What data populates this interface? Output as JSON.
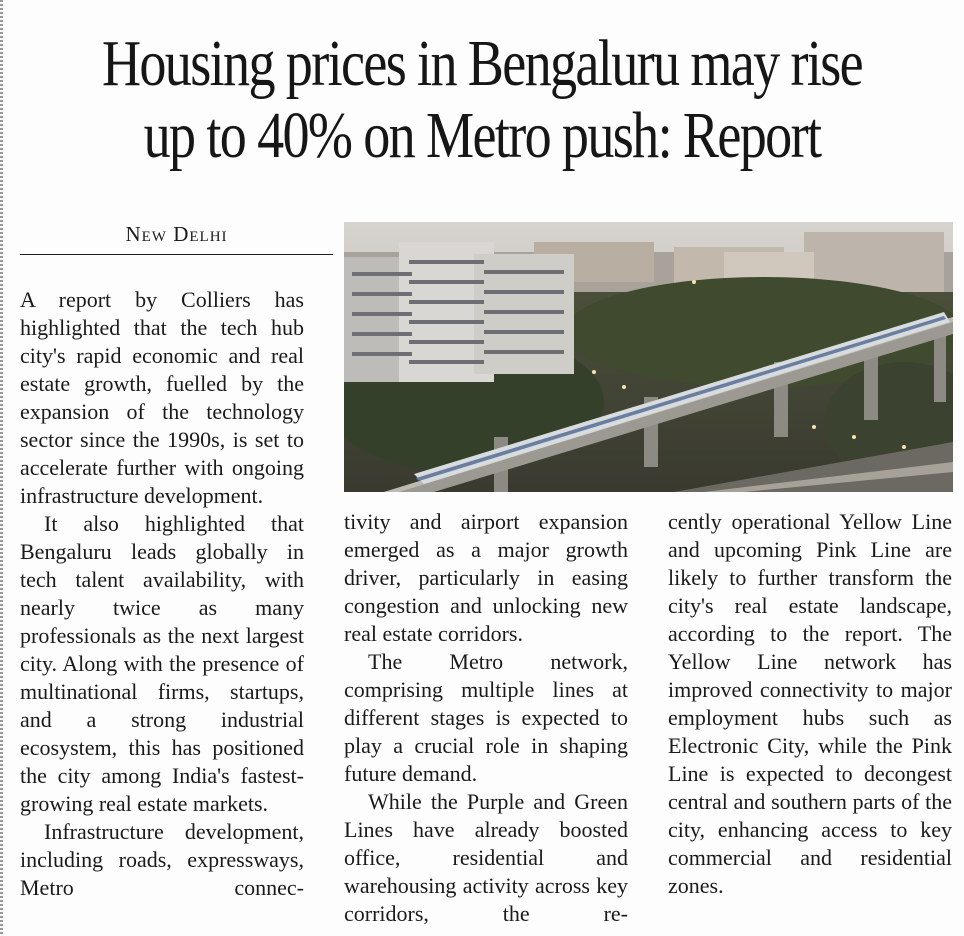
{
  "article": {
    "headline_line1": "Housing prices in Bengaluru may rise",
    "headline_line2": "up to 40% on Metro push: Report",
    "dateline": "New Delhi",
    "col1": {
      "p1": "A report by Colliers has highlighted that the tech hub city's rapid economic and real estate growth, fuelled by the expansion of the technology sector since the 1990s, is set to accelerate further with ongoing infrastructure development.",
      "p2": "It also highlighted that Bengaluru leads globally in tech talent availability, with nearly twice as many professionals as the next largest city. Along with the presence of multinational firms, startups, and a strong industrial ecosystem, this has positioned the city among India's fastest-growing real estate markets.",
      "p3": "Infrastructure development, including roads, expressways, Metro connec-"
    },
    "col2": {
      "p1": "tivity and airport expansion emerged as a major growth driver, particularly in easing congestion and unlocking new real estate corridors.",
      "p2": "The Metro network, comprising multiple lines at different stages is expected to play a crucial role in shaping future demand.",
      "p3": "While the Purple and Green Lines have already boosted office, residential and warehousing activity across key corridors, the re-"
    },
    "col3": {
      "p1": "cently operational Yellow Line and upcoming Pink Line are likely to further transform the city's real estate landscape, according to the report. The Yellow Line network has improved connectivity to major employment hubs such as Electronic City, while the Pink Line is expected to decongest central and southern parts of the city, enhancing access to key commercial and residential zones."
    }
  },
  "photo": {
    "subject": "elevated-metro-train-over-city-icon",
    "colors": {
      "sky": "#c9c6c2",
      "greenery": "#3e4a30",
      "viaduct": "#8d8a84"
    }
  }
}
